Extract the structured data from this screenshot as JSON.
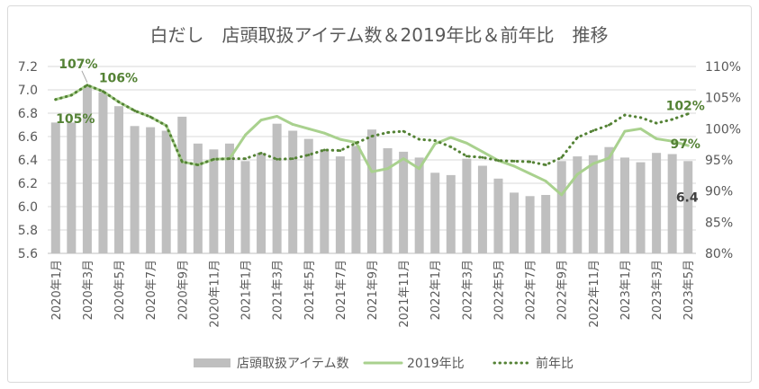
{
  "chart_data": {
    "type": "bar",
    "title": "白だし　店頭取扱アイテム数＆2019年比＆前年比　推移",
    "grid": true,
    "legend_position": "bottom",
    "categories": [
      "2020年1月",
      "",
      "2020年3月",
      "",
      "2020年5月",
      "",
      "2020年7月",
      "",
      "2020年9月",
      "",
      "2020年11月",
      "",
      "2021年1月",
      "",
      "2021年3月",
      "",
      "2021年5月",
      "",
      "2021年7月",
      "",
      "2021年9月",
      "",
      "2021年11月",
      "",
      "2022年1月",
      "",
      "2022年3月",
      "",
      "2022年5月",
      "",
      "2022年7月",
      "",
      "2022年9月",
      "",
      "2022年11月",
      "",
      "2023年1月",
      "",
      "2023年3月",
      "",
      "2023年5月"
    ],
    "y_left_axis": {
      "range": [
        5.6,
        7.2
      ],
      "ticks": [
        "5.6",
        "5.8",
        "6.0",
        "6.2",
        "6.4",
        "6.6",
        "6.8",
        "7.0",
        "7.2"
      ]
    },
    "y_right_axis": {
      "range": [
        80,
        110
      ],
      "ticks": [
        "80%",
        "85%",
        "90%",
        "95%",
        "100%",
        "105%",
        "110%"
      ]
    },
    "series": [
      {
        "name": "店頭取扱アイテム数",
        "type": "bar",
        "axis": "left",
        "color": "#bfbfbf",
        "values": [
          6.72,
          6.72,
          7.03,
          6.98,
          6.86,
          6.69,
          6.68,
          6.65,
          6.77,
          6.54,
          6.49,
          6.54,
          6.39,
          6.46,
          6.71,
          6.65,
          6.58,
          6.49,
          6.43,
          6.52,
          6.66,
          6.5,
          6.47,
          6.42,
          6.29,
          6.27,
          6.41,
          6.35,
          6.24,
          6.12,
          6.09,
          6.1,
          6.39,
          6.43,
          6.44,
          6.51,
          6.42,
          6.38,
          6.46,
          6.45,
          6.39
        ]
      },
      {
        "name": "2019年比",
        "type": "line",
        "axis": "right",
        "style": "solid",
        "color": "#a9d18e",
        "values": [
          104.7,
          105.4,
          107.0,
          106.0,
          104.3,
          102.9,
          101.9,
          100.5,
          94.7,
          94.2,
          95.1,
          95.2,
          99.0,
          101.4,
          102.0,
          100.7,
          100.0,
          99.3,
          98.3,
          97.8,
          93.1,
          93.6,
          95.2,
          93.6,
          97.6,
          98.6,
          97.7,
          96.3,
          94.9,
          94.0,
          92.8,
          91.6,
          89.4,
          92.7,
          94.4,
          95.3,
          99.6,
          100.0,
          98.4,
          98.0,
          97.3
        ]
      },
      {
        "name": "前年比",
        "type": "line",
        "axis": "right",
        "style": "dotted",
        "color": "#548235",
        "values": [
          104.7,
          105.4,
          107.0,
          106.0,
          104.3,
          102.9,
          101.9,
          100.5,
          94.7,
          94.2,
          95.1,
          95.2,
          95.2,
          96.1,
          95.1,
          95.2,
          95.8,
          96.6,
          96.5,
          97.7,
          98.8,
          99.4,
          99.6,
          98.3,
          98.1,
          97.1,
          95.6,
          95.4,
          94.9,
          94.8,
          94.7,
          94.2,
          95.4,
          98.6,
          99.7,
          100.6,
          102.2,
          101.8,
          100.9,
          101.5,
          102.4
        ]
      }
    ],
    "data_labels": [
      {
        "series": "2019年比",
        "index": 0,
        "text": "105%",
        "color": "#548235"
      },
      {
        "series": "2019年比",
        "index": 2,
        "text": "107%",
        "color": "#548235"
      },
      {
        "series": "2019年比",
        "index": 3,
        "text": "106%",
        "color": "#548235"
      },
      {
        "series": "前年比",
        "index": 40,
        "text": "102%",
        "color": "#548235"
      },
      {
        "series": "2019年比",
        "index": 40,
        "text": "97%",
        "color": "#548235"
      },
      {
        "series": "店頭取扱アイテム数",
        "index": 40,
        "text": "6.4",
        "color": "#404040"
      }
    ]
  }
}
